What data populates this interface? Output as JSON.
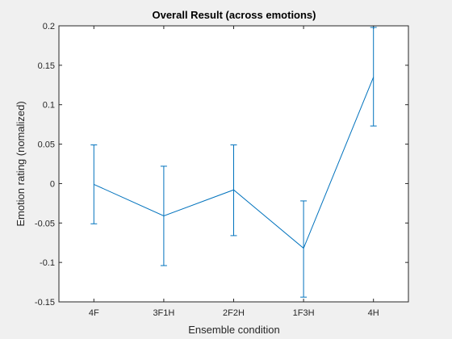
{
  "chart_data": {
    "type": "line",
    "title": "Overall Result (across emotions)",
    "xlabel": "Ensemble condition",
    "ylabel": "Emotion rating (nomalized)",
    "categories": [
      "4F",
      "3F1H",
      "2F2H",
      "1F3H",
      "4H"
    ],
    "series": [
      {
        "name": "Emotion rating",
        "values": [
          -0.001,
          -0.041,
          -0.008,
          -0.082,
          0.135
        ],
        "err_low": [
          0.05,
          0.063,
          0.058,
          0.062,
          0.062
        ],
        "err_high": [
          0.05,
          0.063,
          0.057,
          0.06,
          0.063
        ],
        "color": "#0072bd"
      }
    ],
    "ylim": [
      -0.15,
      0.2
    ],
    "yticks": [
      -0.15,
      -0.1,
      -0.05,
      0,
      0.05,
      0.1,
      0.15,
      0.2
    ],
    "ytick_labels": [
      "-0.15",
      "-0.1",
      "-0.05",
      "0",
      "0.05",
      "0.1",
      "0.15",
      "0.2"
    ],
    "xlim": [
      0.5,
      5.5
    ],
    "grid": false,
    "axes_color": "#262626",
    "background_color": "#ffffff",
    "figure_color": "#f0f0f0"
  }
}
